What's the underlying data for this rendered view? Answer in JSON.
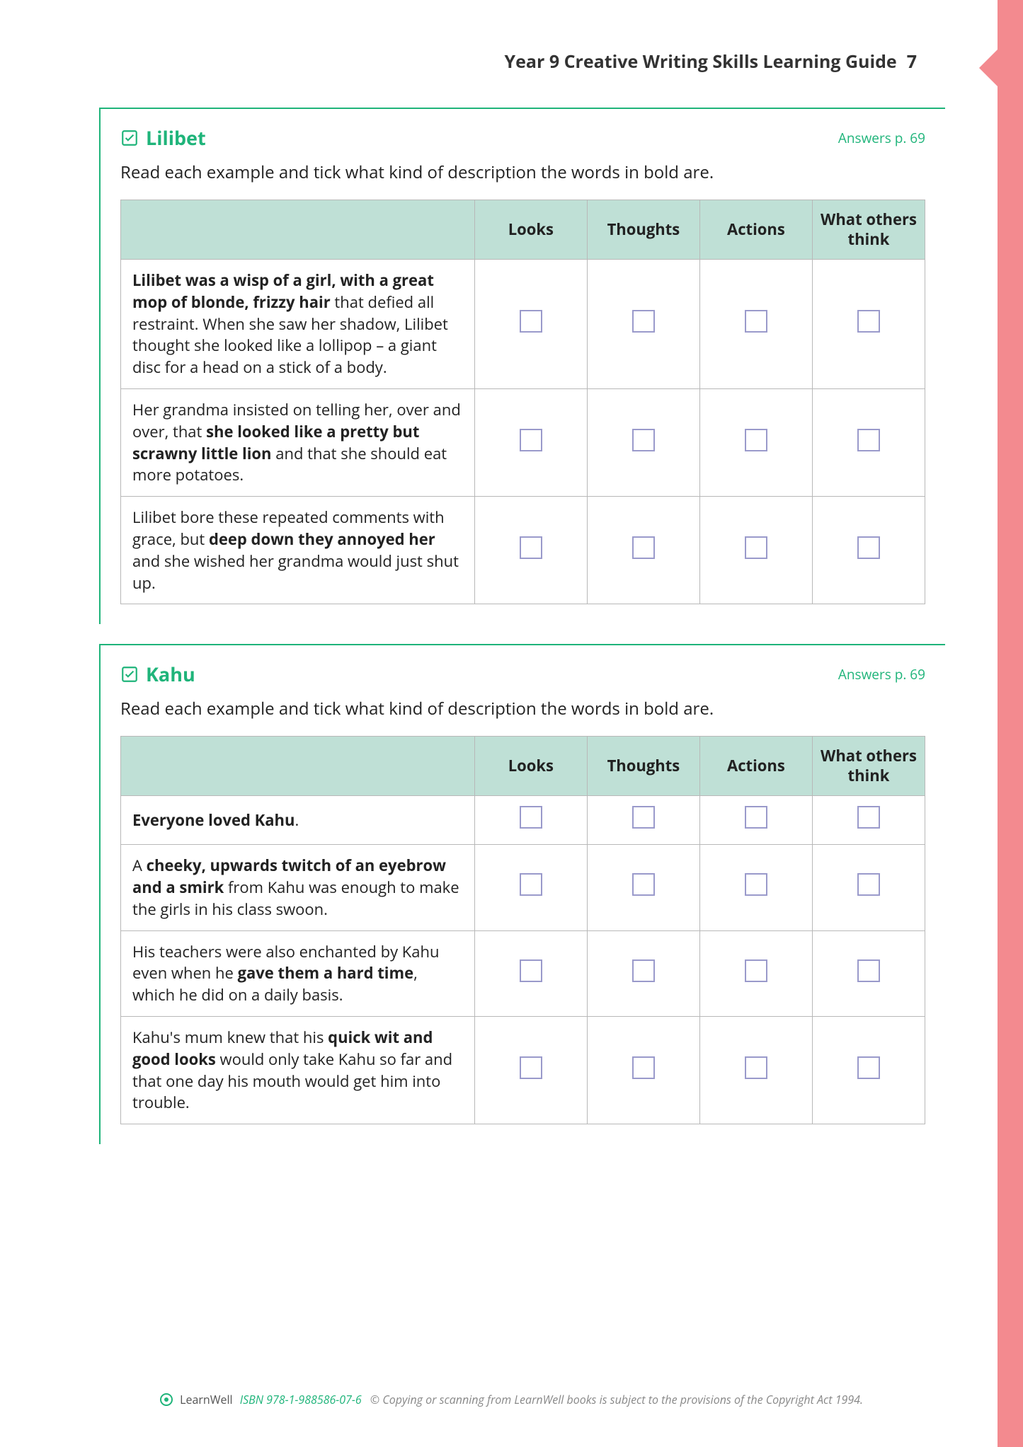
{
  "header": {
    "title": "Year 9 Creative Writing Skills Learning Guide",
    "page_number": "7"
  },
  "columns": [
    "Looks",
    "Thoughts",
    "Actions",
    "What others think"
  ],
  "exercises": [
    {
      "title": "Lilibet",
      "answers_ref": "Answers p. 69",
      "instructions": "Read each example and tick what kind of description the words in bold are.",
      "rows": [
        {
          "segments": [
            {
              "text": "Lilibet was a wisp of a girl, with a great mop of blonde, frizzy hair",
              "bold": true
            },
            {
              "text": " that defied all restraint. When she saw her shadow, Lilibet thought she looked like a lollipop – a giant disc for a head on a stick of a body.",
              "bold": false
            }
          ]
        },
        {
          "segments": [
            {
              "text": "Her grandma insisted on telling her, over and over, that ",
              "bold": false
            },
            {
              "text": "she looked like a pretty but scrawny little lion",
              "bold": true
            },
            {
              "text": " and that she should eat more potatoes.",
              "bold": false
            }
          ]
        },
        {
          "segments": [
            {
              "text": "Lilibet bore these repeated comments with grace, but ",
              "bold": false
            },
            {
              "text": "deep down they annoyed her",
              "bold": true
            },
            {
              "text": " and she wished her grandma would just shut up.",
              "bold": false
            }
          ]
        }
      ]
    },
    {
      "title": "Kahu",
      "answers_ref": "Answers p. 69",
      "instructions": "Read each example and tick what kind of description the words in bold are.",
      "rows": [
        {
          "segments": [
            {
              "text": "Everyone loved Kahu",
              "bold": true
            },
            {
              "text": ".",
              "bold": false
            }
          ]
        },
        {
          "segments": [
            {
              "text": "A ",
              "bold": false
            },
            {
              "text": "cheeky, upwards twitch of an eyebrow and a smirk",
              "bold": true
            },
            {
              "text": " from Kahu was enough to make the girls in his class swoon.",
              "bold": false
            }
          ]
        },
        {
          "segments": [
            {
              "text": "His teachers were also enchanted by Kahu even when he ",
              "bold": false
            },
            {
              "text": "gave them a hard time",
              "bold": true
            },
            {
              "text": ", which he did on a daily basis.",
              "bold": false
            }
          ]
        },
        {
          "segments": [
            {
              "text": "Kahu's mum knew that his ",
              "bold": false
            },
            {
              "text": "quick wit and good looks",
              "bold": true
            },
            {
              "text": " would only take Kahu so far and that one day his mouth would get him into trouble.",
              "bold": false
            }
          ]
        }
      ]
    }
  ],
  "footer": {
    "brand": "LearnWell",
    "isbn": "ISBN 978-1-988586-07-6",
    "copyright": "© Copying or scanning from LearnWell books is subject to the provisions of the Copyright Act 1994."
  },
  "colors": {
    "accent_green": "#1fb47a",
    "table_header_bg": "#bfe0d6",
    "table_border": "#b8b8b8",
    "checkbox_border": "#9a9acb",
    "side_tab": "#f38a8f",
    "text": "#222222"
  }
}
